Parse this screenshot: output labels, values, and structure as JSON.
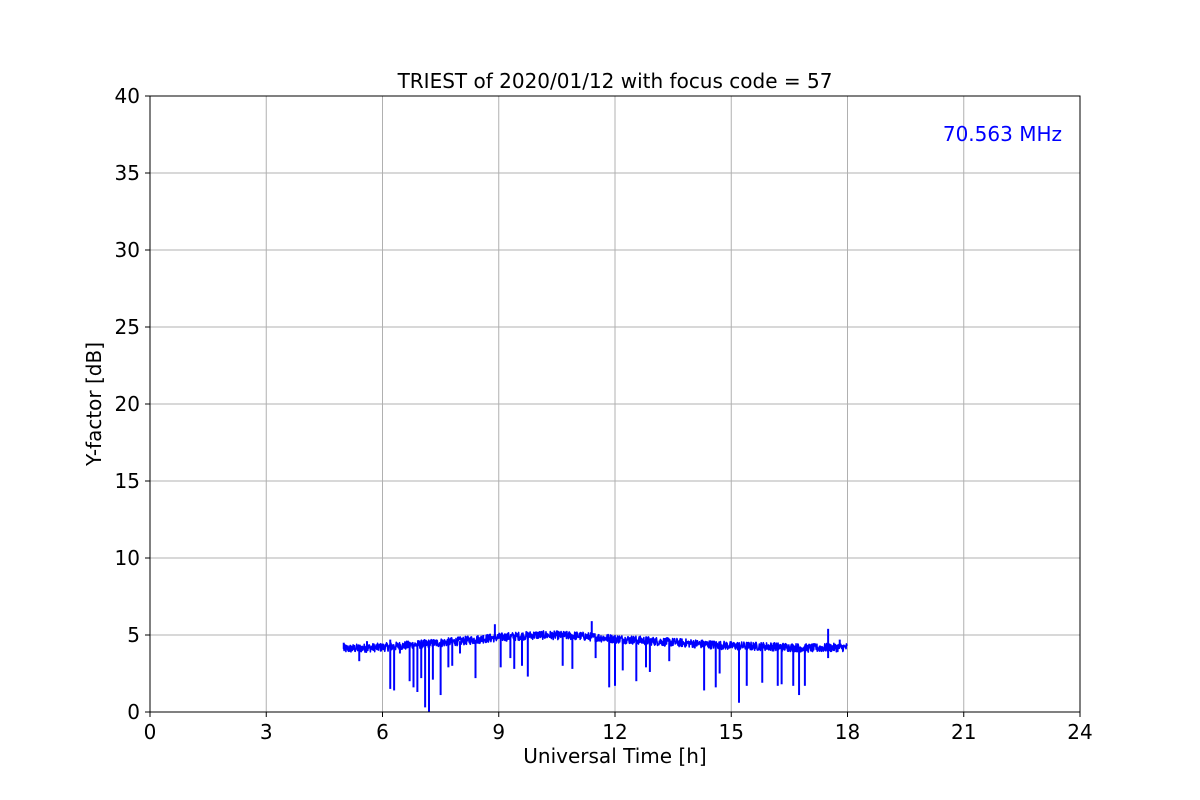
{
  "chart_data": {
    "type": "line",
    "title": "TRIEST of 2020/01/12 with focus code = 57",
    "xlabel": "Universal Time [h]",
    "ylabel": "Y-factor [dB]",
    "annotation": "70.563 MHz",
    "xlim": [
      0,
      24
    ],
    "ylim": [
      0,
      40
    ],
    "xticks": [
      "0",
      "3",
      "6",
      "9",
      "12",
      "15",
      "18",
      "21",
      "24"
    ],
    "yticks": [
      "0",
      "5",
      "10",
      "15",
      "20",
      "25",
      "30",
      "35",
      "40"
    ],
    "grid": true,
    "series": [
      {
        "color": "#0000ff",
        "baseline": [
          [
            5.0,
            4.1
          ],
          [
            6.0,
            4.2
          ],
          [
            7.0,
            4.4
          ],
          [
            8.0,
            4.6
          ],
          [
            9.0,
            4.85
          ],
          [
            10.0,
            5.0
          ],
          [
            11.0,
            4.95
          ],
          [
            12.0,
            4.75
          ],
          [
            13.0,
            4.6
          ],
          [
            14.0,
            4.45
          ],
          [
            15.0,
            4.3
          ],
          [
            16.0,
            4.25
          ],
          [
            17.0,
            4.15
          ],
          [
            18.0,
            4.2
          ]
        ],
        "dips": [
          [
            5.4,
            3.3
          ],
          [
            6.2,
            1.5
          ],
          [
            6.3,
            1.4
          ],
          [
            6.45,
            3.8
          ],
          [
            6.7,
            2.0
          ],
          [
            6.8,
            1.6
          ],
          [
            6.9,
            1.3
          ],
          [
            7.0,
            2.2
          ],
          [
            7.1,
            0.3
          ],
          [
            7.2,
            0.0
          ],
          [
            7.3,
            2.1
          ],
          [
            7.5,
            1.1
          ],
          [
            7.7,
            2.9
          ],
          [
            7.8,
            3.0
          ],
          [
            8.0,
            3.8
          ],
          [
            8.4,
            2.2
          ],
          [
            9.05,
            2.9
          ],
          [
            9.3,
            3.5
          ],
          [
            9.4,
            2.8
          ],
          [
            9.6,
            3.0
          ],
          [
            9.75,
            2.3
          ],
          [
            10.65,
            3.0
          ],
          [
            10.9,
            2.8
          ],
          [
            11.5,
            3.5
          ],
          [
            11.85,
            1.6
          ],
          [
            12.0,
            1.7
          ],
          [
            12.2,
            2.7
          ],
          [
            12.55,
            2.0
          ],
          [
            12.8,
            2.9
          ],
          [
            12.9,
            2.6
          ],
          [
            13.4,
            3.3
          ],
          [
            14.3,
            1.4
          ],
          [
            14.6,
            1.6
          ],
          [
            14.7,
            2.5
          ],
          [
            15.2,
            0.6
          ],
          [
            15.4,
            1.7
          ],
          [
            15.8,
            1.9
          ],
          [
            16.2,
            1.7
          ],
          [
            16.3,
            1.8
          ],
          [
            16.6,
            1.7
          ],
          [
            16.75,
            1.1
          ],
          [
            16.9,
            1.7
          ],
          [
            17.5,
            3.5
          ]
        ],
        "spikes": [
          [
            5.0,
            4.5
          ],
          [
            5.6,
            4.6
          ],
          [
            6.2,
            4.7
          ],
          [
            8.6,
            5.0
          ],
          [
            8.9,
            5.7
          ],
          [
            10.5,
            5.3
          ],
          [
            11.4,
            5.9
          ],
          [
            17.5,
            5.4
          ],
          [
            17.8,
            4.7
          ]
        ]
      }
    ]
  }
}
